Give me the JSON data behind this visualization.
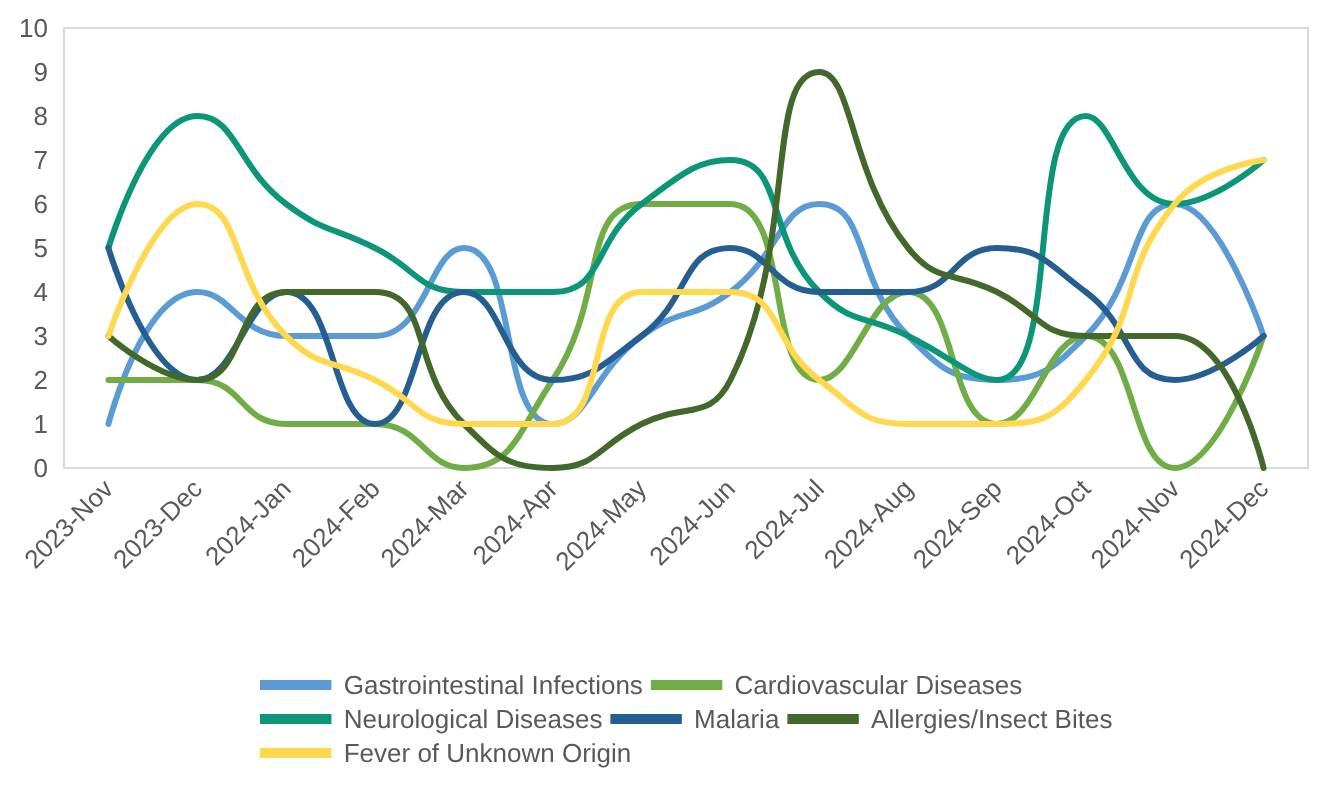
{
  "chart_data": {
    "type": "line",
    "categories": [
      "2023-Nov",
      "2023-Dec",
      "2024-Jan",
      "2024-Feb",
      "2024-Mar",
      "2024-Apr",
      "2024-May",
      "2024-Jun",
      "2024-Jul",
      "2024-Aug",
      "2024-Sep",
      "2024-Oct",
      "2024-Nov",
      "2024-Dec"
    ],
    "series": [
      {
        "name": "Gastrointestinal Infections",
        "color": "#5b9bd5",
        "values": [
          1,
          4,
          3,
          3,
          5,
          1,
          3,
          4,
          6,
          3,
          2,
          3,
          6,
          3
        ]
      },
      {
        "name": "Cardiovascular Diseases",
        "color": "#70ad47",
        "values": [
          2,
          2,
          1,
          1,
          0,
          2,
          6,
          6,
          2,
          4,
          1,
          3,
          0,
          3
        ]
      },
      {
        "name": "Neurological Diseases",
        "color": "#0b9677",
        "values": [
          5,
          8,
          6,
          5,
          4,
          4,
          6,
          7,
          4,
          3,
          2,
          8,
          6,
          7
        ]
      },
      {
        "name": "Malaria",
        "color": "#255e91",
        "values": [
          5,
          2,
          4,
          1,
          4,
          2,
          3,
          5,
          4,
          4,
          5,
          4,
          2,
          3
        ]
      },
      {
        "name": "Allergies/Insect Bites",
        "color": "#43682b",
        "values": [
          3,
          2,
          4,
          4,
          1,
          0,
          1,
          2,
          9,
          5,
          4,
          3,
          3,
          0
        ]
      },
      {
        "name": "Fever of Unknown Origin",
        "color": "#ffd84d",
        "values": [
          3,
          6,
          3,
          2,
          1,
          1,
          4,
          4,
          2,
          1,
          1,
          2,
          6,
          7
        ]
      }
    ],
    "ylim": [
      0,
      10
    ],
    "yticks": [
      0,
      1,
      2,
      3,
      4,
      5,
      6,
      7,
      8,
      9,
      10
    ],
    "grid": false,
    "legend": "bottom",
    "marker": "none",
    "line_style": "solid"
  }
}
